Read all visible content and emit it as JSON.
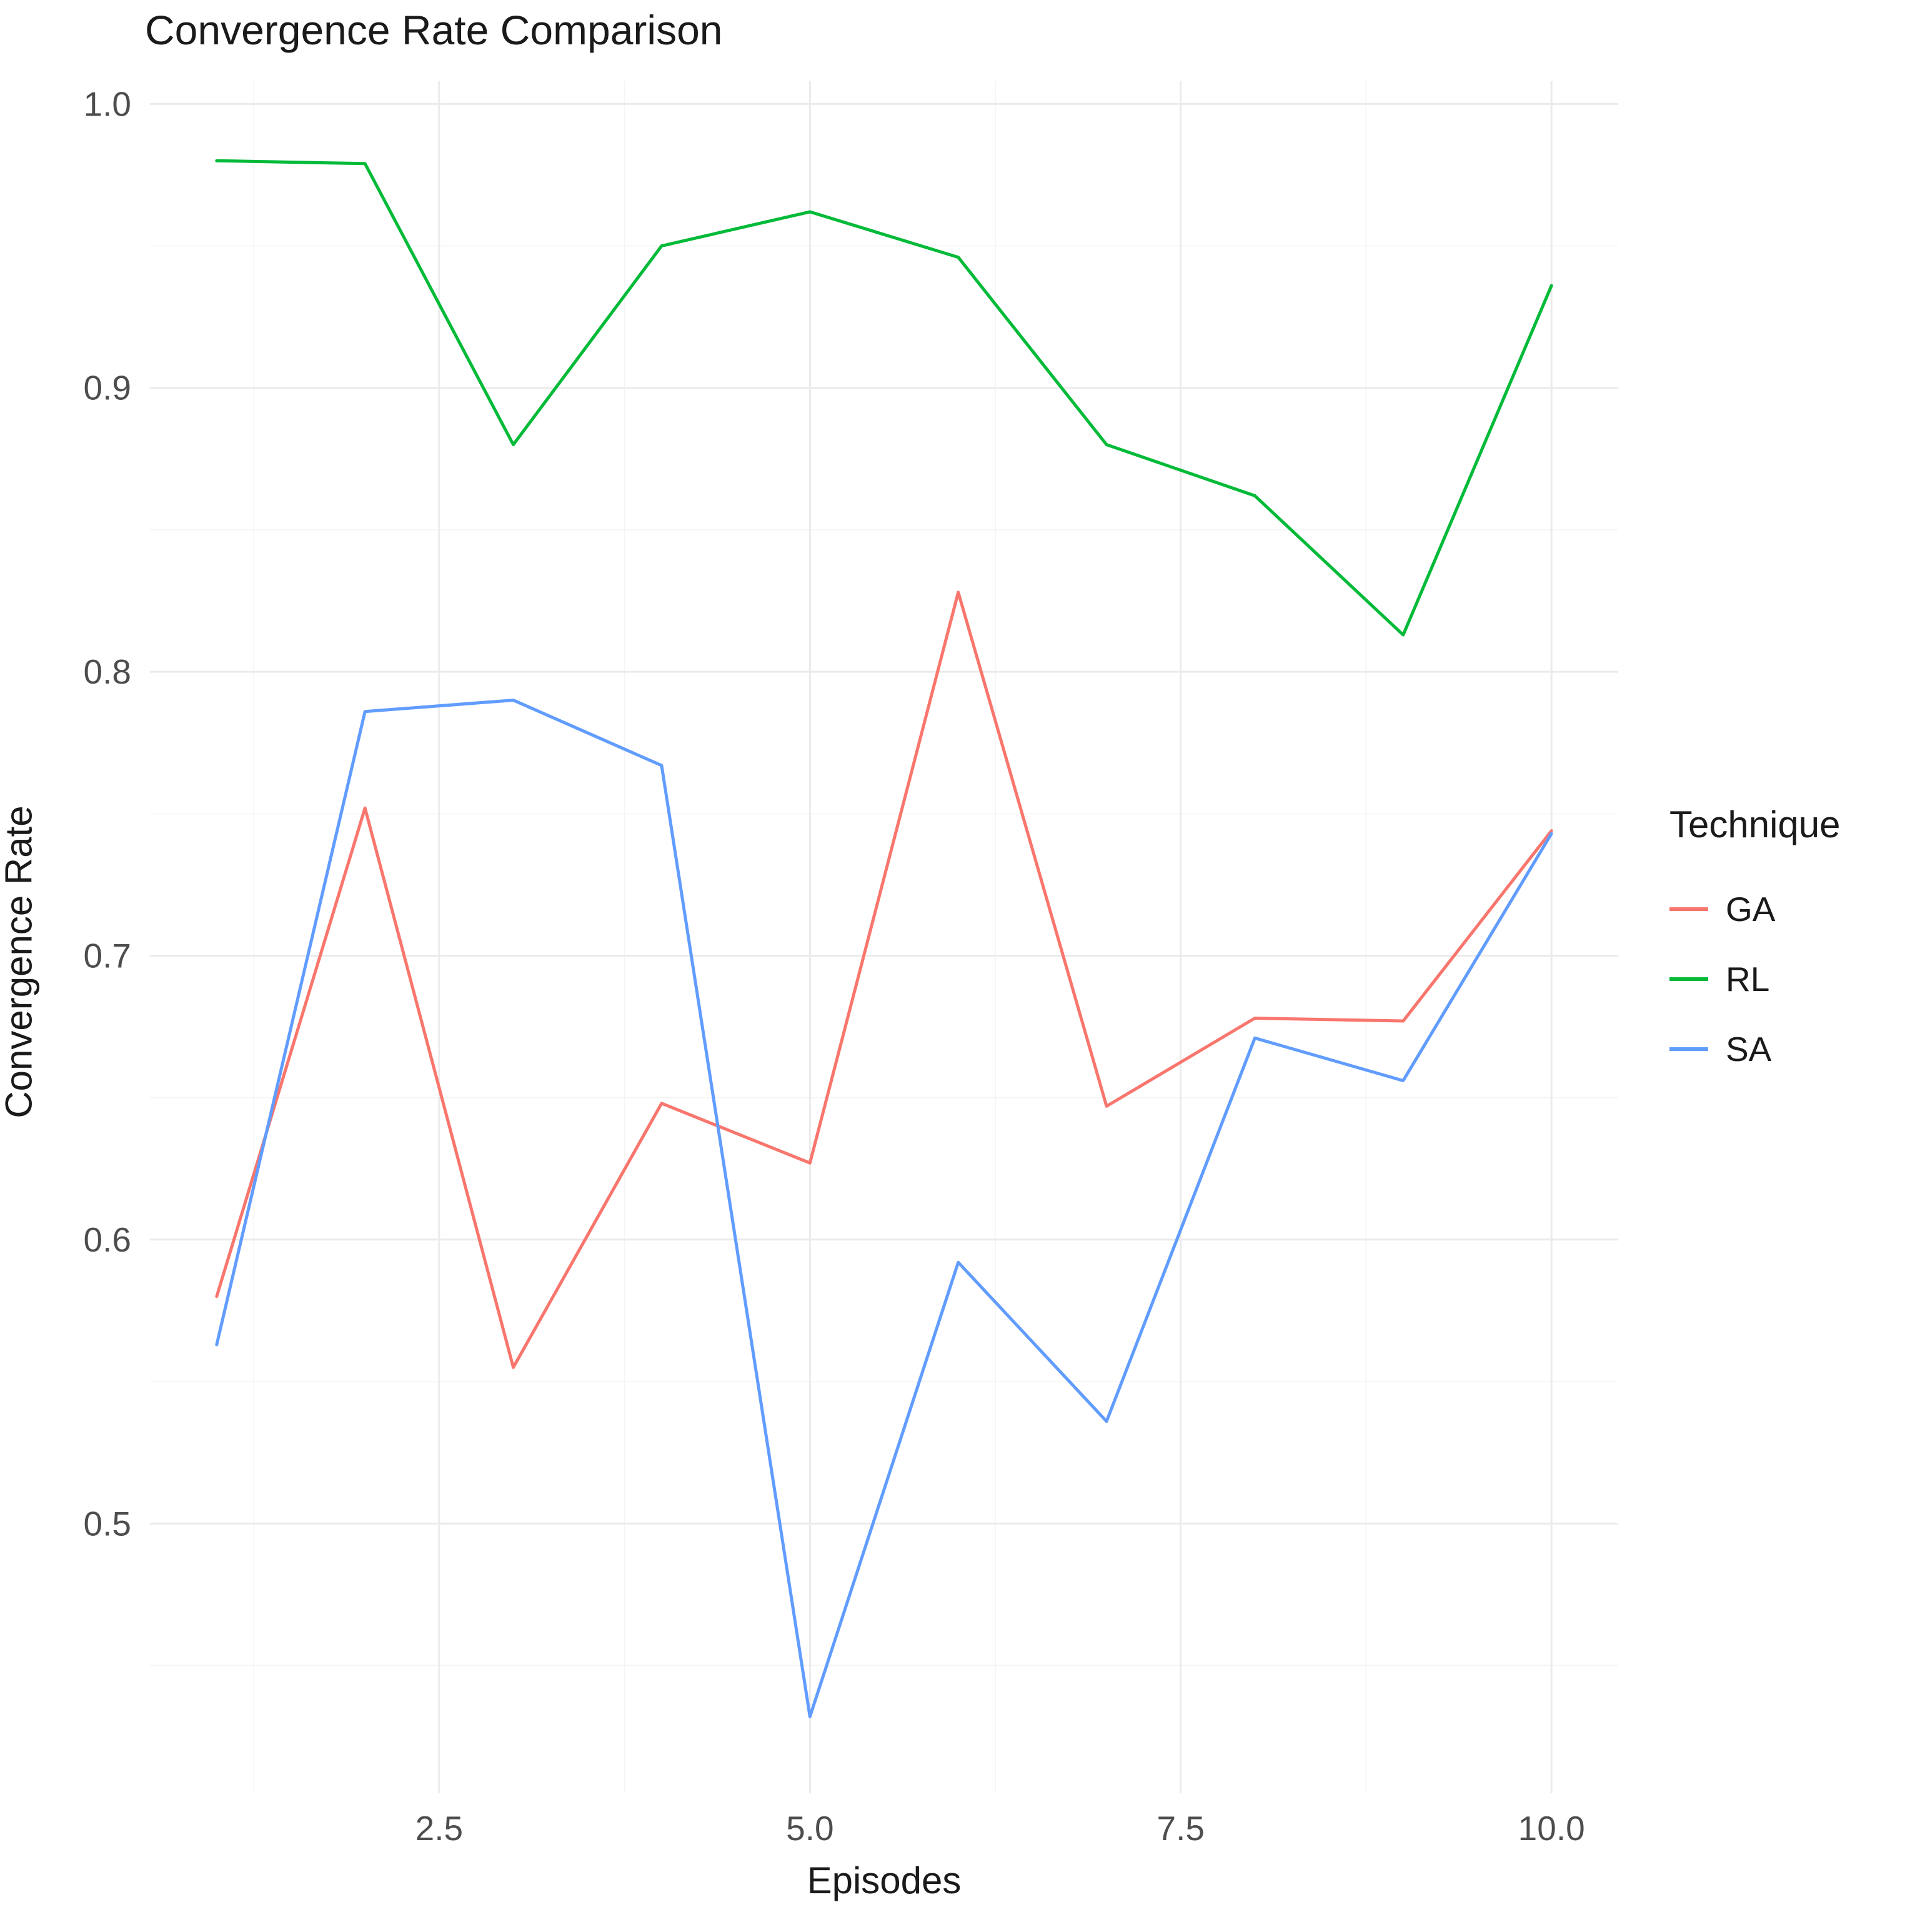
{
  "title": "Convergence Rate Comparison",
  "chart_data": {
    "type": "line",
    "title": "Convergence Rate Comparison",
    "xlabel": "Episodes",
    "ylabel": "Convergence Rate",
    "x": [
      1,
      2,
      3,
      4,
      5,
      6,
      7,
      8,
      9,
      10
    ],
    "series": [
      {
        "name": "GA",
        "color": "#F8766D",
        "values": [
          0.58,
          0.752,
          0.555,
          0.648,
          0.627,
          0.828,
          0.647,
          0.678,
          0.677,
          0.744
        ]
      },
      {
        "name": "RL",
        "color": "#00BA38",
        "values": [
          0.98,
          0.979,
          0.88,
          0.95,
          0.962,
          0.946,
          0.88,
          0.862,
          0.813,
          0.936
        ]
      },
      {
        "name": "SA",
        "color": "#619CFF",
        "values": [
          0.563,
          0.786,
          0.79,
          0.767,
          0.432,
          0.592,
          0.536,
          0.671,
          0.656,
          0.743
        ]
      }
    ],
    "xlim": [
      0.55,
      10.45
    ],
    "ylim": [
      0.405,
      1.008
    ],
    "x_ticks": [
      2.5,
      5.0,
      7.5,
      10.0
    ],
    "x_tick_labels": [
      "2.5",
      "5.0",
      "7.5",
      "10.0"
    ],
    "y_ticks": [
      0.5,
      0.6,
      0.7,
      0.8,
      0.9,
      1.0
    ],
    "y_tick_labels": [
      "0.5",
      "0.6",
      "0.7",
      "0.8",
      "0.9",
      "1.0"
    ],
    "x_minor_ticks": [
      1.25,
      3.75,
      6.25,
      8.75
    ],
    "y_minor_ticks": [
      0.45,
      0.55,
      0.65,
      0.75,
      0.85,
      0.95
    ],
    "grid": true,
    "legend_title": "Technique",
    "legend_position": "right"
  },
  "colors": {
    "grid_major": "#EBEBEB",
    "grid_minor": "#F4F4F4",
    "axis_text": "#4D4D4D",
    "title_text": "#1A1A1A",
    "background": "#FFFFFF"
  }
}
